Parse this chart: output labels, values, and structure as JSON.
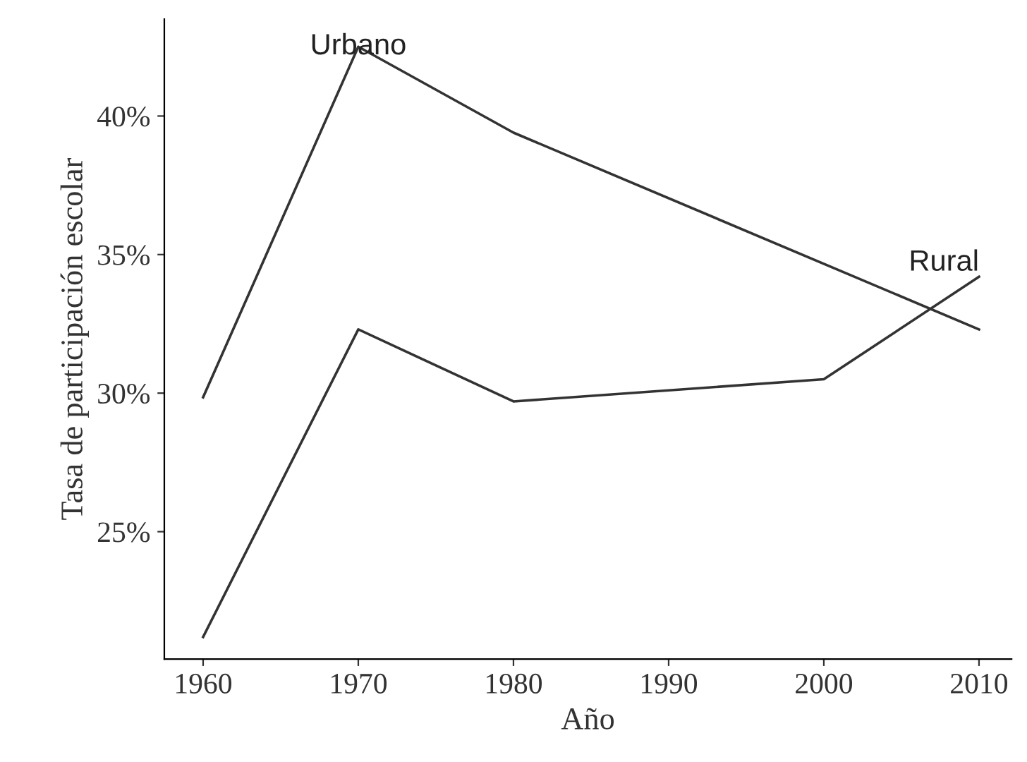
{
  "chart_data": {
    "type": "line",
    "xlabel": "Año",
    "ylabel": "Tasa de participación escolar",
    "series": [
      {
        "name": "Urbano",
        "color": "#333333",
        "x": [
          1960,
          1970,
          1980,
          2010
        ],
        "values": [
          29.85,
          42.5,
          39.4,
          32.3
        ]
      },
      {
        "name": "Rural",
        "color": "#333333",
        "x": [
          1960,
          1970,
          1980,
          2000,
          2010
        ],
        "values": [
          21.2,
          32.3,
          29.7,
          30.5,
          34.2
        ]
      }
    ],
    "xlim": [
      1957.5,
      2012.1
    ],
    "ylim": [
      20.4,
      43.5
    ],
    "xticks": [
      1960,
      1970,
      1980,
      1990,
      2000,
      2010
    ],
    "yticks": [
      {
        "value": 25,
        "label": "25%"
      },
      {
        "value": 30,
        "label": "30%"
      },
      {
        "value": 35,
        "label": "35%"
      },
      {
        "value": 40,
        "label": "40%"
      }
    ],
    "grid": false,
    "legend": false,
    "marker": "none",
    "line_style": "solid"
  }
}
